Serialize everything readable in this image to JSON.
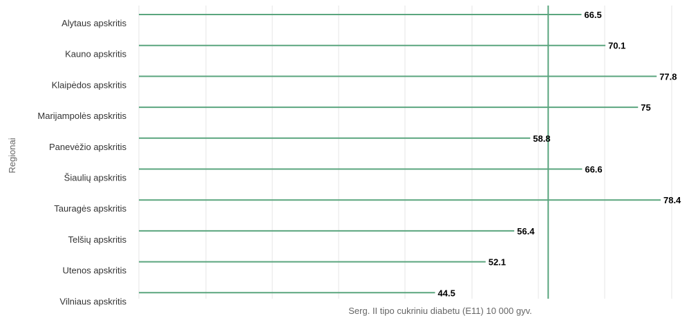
{
  "chart_data": {
    "type": "bar",
    "orientation": "horizontal",
    "categories": [
      "Alytaus apskritis",
      "Kauno apskritis",
      "Klaipėdos apskritis",
      "Marijampolės apskritis",
      "Panevėžio apskritis",
      "Šiaulių apskritis",
      "Tauragės apskritis",
      "Telšių apskritis",
      "Utenos apskritis",
      "Vilniaus apskritis"
    ],
    "values": [
      66.5,
      70.1,
      77.8,
      75,
      58.8,
      66.6,
      78.4,
      56.4,
      52.1,
      44.5
    ],
    "value_labels": [
      "66.5",
      "70.1",
      "77.8",
      "75",
      "58.8",
      "66.6",
      "78.4",
      "56.4",
      "52.1",
      "44.5"
    ],
    "xlabel": "Serg. II tipo cukriniu diabetu (E11) 10 000 gyv.",
    "ylabel": "Regionai",
    "xlim": [
      0,
      80
    ],
    "reference_line": 61.5,
    "grid": true,
    "legend": "none",
    "colors": {
      "bar": "#5aa57e",
      "reference": "#5aa57e",
      "grid": "#e6e6e6"
    }
  }
}
